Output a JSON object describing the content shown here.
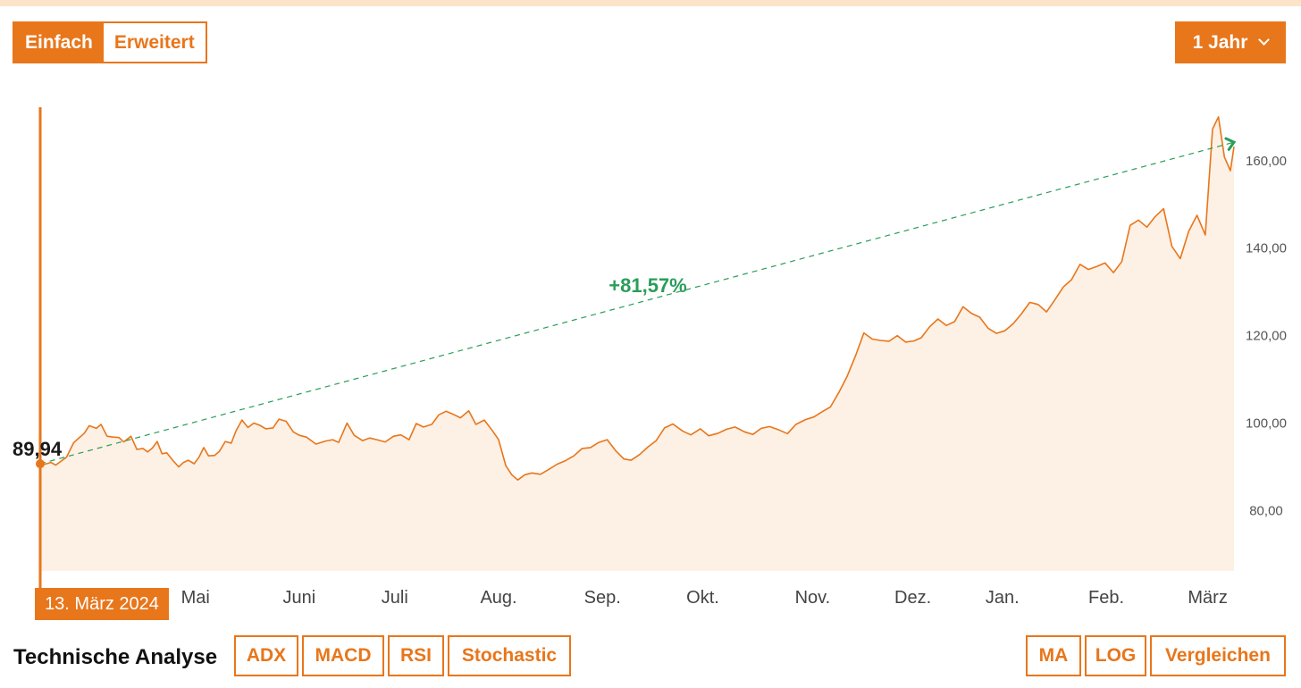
{
  "view_toggle": {
    "simple": "Einfach",
    "advanced": "Erweitert",
    "active": "simple"
  },
  "range_select": {
    "label": "1 Jahr",
    "icon": "chevron-down-icon"
  },
  "colors": {
    "accent": "#e8761b",
    "area_fill": "#fdf0e4",
    "trend": "#2a9d5a"
  },
  "chart_data": {
    "type": "area",
    "x_tick_labels": [
      "Mai",
      "Juni",
      "Juli",
      "Aug.",
      "Sep.",
      "Okt.",
      "Nov.",
      "Dez.",
      "Jan.",
      "Feb.",
      "März"
    ],
    "y_tick_labels": [
      "80,00",
      "100,00",
      "120,00",
      "140,00",
      "160,00"
    ],
    "y_ticks": [
      80,
      100,
      120,
      140,
      160
    ],
    "ylim": [
      66,
      172
    ],
    "xlim": [
      0,
      100
    ],
    "x_tick_positions": [
      13.0,
      21.7,
      29.7,
      38.4,
      47.1,
      55.5,
      64.7,
      73.1,
      80.6,
      89.3,
      97.8
    ],
    "start_label": "89,94",
    "start_date": "13. März 2024",
    "trend": {
      "label": "+81,57%",
      "from": [
        0,
        90.5
      ],
      "to": [
        100,
        164
      ]
    },
    "series": [
      {
        "x": [
          0,
          0.4,
          0.9,
          1.3,
          2.2,
          2.8,
          3.7,
          4.1,
          4.7,
          5.1,
          5.6,
          6.1,
          6.6,
          7.0,
          7.6,
          8.1,
          8.6,
          9.0,
          9.4,
          9.8,
          10.2,
          10.6,
          11.2,
          11.6,
          12.0,
          12.4,
          12.9,
          13.3,
          13.7,
          14.1,
          14.6,
          15.0,
          15.5,
          16.0,
          16.4,
          16.9,
          17.4,
          17.9,
          18.4,
          18.9,
          19.5,
          20.0,
          20.6,
          21.2,
          21.7,
          22.3,
          23.1,
          23.9,
          24.5,
          25.0,
          25.7,
          26.3,
          27.0,
          27.6,
          28.2,
          28.9,
          29.6,
          30.2,
          30.9,
          31.5,
          32.1,
          32.8,
          33.4,
          34.0,
          34.6,
          35.2,
          35.9,
          36.5,
          37.2,
          37.9,
          38.4,
          39.0,
          39.5,
          40.0,
          40.6,
          41.2,
          41.9,
          42.6,
          43.3,
          44.0,
          44.7,
          45.4,
          46.1,
          46.8,
          47.5,
          48.2,
          48.9,
          49.5,
          50.2,
          50.9,
          51.6,
          52.3,
          53.0,
          53.8,
          54.5,
          55.3,
          56.0,
          56.8,
          57.5,
          58.2,
          59.0,
          59.7,
          60.4,
          61.1,
          61.9,
          62.6,
          63.3,
          64.1,
          64.8,
          65.5,
          66.2,
          66.9,
          67.6,
          68.3,
          69.0,
          69.7,
          70.4,
          71.1,
          71.8,
          72.5,
          73.2,
          73.8,
          74.5,
          75.2,
          75.9,
          76.6,
          77.3,
          78.0,
          78.7,
          79.4,
          80.1,
          80.8,
          81.5,
          82.2,
          82.9,
          83.6,
          84.3,
          85.0,
          85.7,
          86.4,
          87.1,
          87.8,
          88.5,
          89.2,
          89.9,
          90.6,
          91.3,
          92.0,
          92.7,
          93.4,
          94.1,
          94.8,
          95.5,
          96.2,
          96.9,
          97.6,
          98.2,
          98.7,
          99.2,
          99.7,
          100
        ],
        "y": [
          90.5,
          90.4,
          90.8,
          90.2,
          92.0,
          95.3,
          97.5,
          99.2,
          98.6,
          99.5,
          96.8,
          96.6,
          96.5,
          95.5,
          96.8,
          93.8,
          94.0,
          93.2,
          94.1,
          95.6,
          92.8,
          93.0,
          91.0,
          89.8,
          90.8,
          91.3,
          90.5,
          92.0,
          94.2,
          92.3,
          92.4,
          93.3,
          95.6,
          95.2,
          98.0,
          100.5,
          98.8,
          99.8,
          99.3,
          98.5,
          98.7,
          100.7,
          100.2,
          97.8,
          97.0,
          96.6,
          95.0,
          95.7,
          96.0,
          95.4,
          99.8,
          97.0,
          95.8,
          96.4,
          96.0,
          95.5,
          96.8,
          97.1,
          96.0,
          99.7,
          98.9,
          99.5,
          101.7,
          102.5,
          101.8,
          101.0,
          102.6,
          99.5,
          100.5,
          98.0,
          96.0,
          90.1,
          88.0,
          86.8,
          88.0,
          88.4,
          88.1,
          89.2,
          90.4,
          91.2,
          92.3,
          94.0,
          94.2,
          95.4,
          96.0,
          93.5,
          91.6,
          91.3,
          92.6,
          94.3,
          95.8,
          98.7,
          99.6,
          98.0,
          97.1,
          98.5,
          96.9,
          97.5,
          98.4,
          98.9,
          97.8,
          97.2,
          98.6,
          99.0,
          98.2,
          97.4,
          99.5,
          100.6,
          101.2,
          102.4,
          103.5,
          106.8,
          110.5,
          115.2,
          120.4,
          119.0,
          118.7,
          118.5,
          119.8,
          118.3,
          118.6,
          119.3,
          121.8,
          123.6,
          122.1,
          123.0,
          126.4,
          124.9,
          124.0,
          121.5,
          120.3,
          120.9,
          122.5,
          124.8,
          127.4,
          126.9,
          125.2,
          128.0,
          130.9,
          132.6,
          136.1,
          134.9,
          135.6,
          136.4,
          134.2,
          136.7,
          145.0,
          146.2,
          144.6,
          147.0,
          148.8,
          140.2,
          137.4,
          143.6,
          147.3,
          142.8,
          167.0,
          169.8,
          160.6,
          157.5,
          163.0
        ]
      }
    ]
  },
  "technical_analysis": {
    "title": "Technische Analyse",
    "indicators": [
      "ADX",
      "MACD",
      "RSI",
      "Stochastic"
    ],
    "tools": [
      "MA",
      "LOG",
      "Vergleichen"
    ]
  }
}
